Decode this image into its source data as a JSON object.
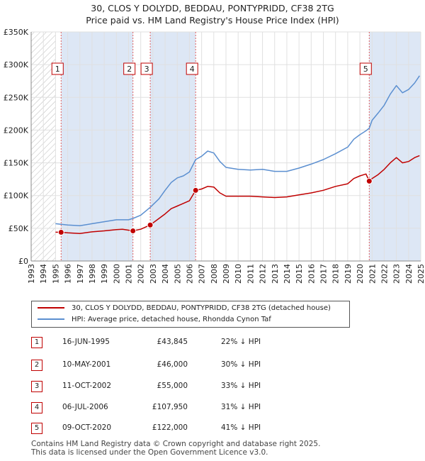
{
  "title_line1": "30, CLOS Y DOLYDD, BEDDAU, PONTYPRIDD, CF38 2TG",
  "title_line2": "Price paid vs. HM Land Registry's House Price Index (HPI)",
  "colors": {
    "property": "#c00000",
    "hpi": "#5b8fd0",
    "shade": "#dde7f5",
    "grid": "#e0e0e0"
  },
  "chart_data": {
    "type": "line",
    "xlim": [
      1993,
      2025
    ],
    "ylim": [
      0,
      350000
    ],
    "x_ticks": [
      "1993",
      "1994",
      "1995",
      "1996",
      "1997",
      "1998",
      "1999",
      "2000",
      "2001",
      "2002",
      "2003",
      "2004",
      "2005",
      "2006",
      "2007",
      "2008",
      "2009",
      "2010",
      "2011",
      "2012",
      "2013",
      "2014",
      "2015",
      "2016",
      "2017",
      "2018",
      "2019",
      "2020",
      "2021",
      "2022",
      "2023",
      "2024",
      "2025"
    ],
    "y_ticks": [
      {
        "value": 0,
        "label": "£0"
      },
      {
        "value": 50000,
        "label": "£50K"
      },
      {
        "value": 100000,
        "label": "£100K"
      },
      {
        "value": 150000,
        "label": "£150K"
      },
      {
        "value": 200000,
        "label": "£200K"
      },
      {
        "value": 250000,
        "label": "£250K"
      },
      {
        "value": 300000,
        "label": "£300K"
      },
      {
        "value": 350000,
        "label": "£350K"
      }
    ],
    "grid": true,
    "series": [
      {
        "name": "30, CLOS Y DOLYDD, BEDDAU, PONTYPRIDD, CF38 2TG (detached house)",
        "color": "#c00000",
        "points": [
          [
            1995.0,
            44000
          ],
          [
            1995.46,
            43845
          ],
          [
            1996.0,
            43000
          ],
          [
            1997.0,
            42000
          ],
          [
            1998.0,
            44500
          ],
          [
            1999.0,
            46000
          ],
          [
            2000.0,
            48000
          ],
          [
            2000.5,
            48500
          ],
          [
            2001.36,
            46000
          ],
          [
            2002.0,
            48500
          ],
          [
            2002.78,
            55000
          ],
          [
            2003.5,
            65000
          ],
          [
            2004.0,
            72000
          ],
          [
            2004.5,
            80000
          ],
          [
            2005.0,
            84000
          ],
          [
            2005.5,
            88000
          ],
          [
            2006.0,
            92000
          ],
          [
            2006.51,
            107950
          ],
          [
            2007.0,
            110000
          ],
          [
            2007.5,
            114000
          ],
          [
            2008.0,
            113000
          ],
          [
            2008.5,
            104000
          ],
          [
            2009.0,
            99000
          ],
          [
            2010.0,
            99000
          ],
          [
            2011.0,
            99000
          ],
          [
            2012.0,
            98000
          ],
          [
            2013.0,
            97000
          ],
          [
            2014.0,
            98000
          ],
          [
            2015.0,
            101000
          ],
          [
            2016.0,
            104000
          ],
          [
            2017.0,
            108000
          ],
          [
            2018.0,
            114000
          ],
          [
            2019.0,
            118000
          ],
          [
            2019.5,
            126000
          ],
          [
            2020.0,
            130000
          ],
          [
            2020.5,
            133000
          ],
          [
            2020.77,
            122000
          ],
          [
            2021.0,
            126000
          ],
          [
            2021.5,
            132000
          ],
          [
            2022.0,
            140000
          ],
          [
            2022.5,
            150000
          ],
          [
            2023.0,
            158000
          ],
          [
            2023.5,
            150000
          ],
          [
            2024.0,
            152000
          ],
          [
            2024.5,
            158000
          ],
          [
            2024.9,
            161000
          ]
        ]
      },
      {
        "name": "HPI: Average price, detached house, Rhondda Cynon Taf",
        "color": "#5b8fd0",
        "points": [
          [
            1995.0,
            57000
          ],
          [
            1995.46,
            56000
          ],
          [
            1996.0,
            55000
          ],
          [
            1997.0,
            54000
          ],
          [
            1998.0,
            57000
          ],
          [
            1999.0,
            60000
          ],
          [
            2000.0,
            63000
          ],
          [
            2001.0,
            63000
          ],
          [
            2001.36,
            65000
          ],
          [
            2002.0,
            70000
          ],
          [
            2002.78,
            82000
          ],
          [
            2003.5,
            95000
          ],
          [
            2004.0,
            108000
          ],
          [
            2004.5,
            120000
          ],
          [
            2005.0,
            127000
          ],
          [
            2005.5,
            130000
          ],
          [
            2006.0,
            136000
          ],
          [
            2006.51,
            155000
          ],
          [
            2007.0,
            160000
          ],
          [
            2007.5,
            168000
          ],
          [
            2008.0,
            165000
          ],
          [
            2008.5,
            152000
          ],
          [
            2009.0,
            143000
          ],
          [
            2010.0,
            140000
          ],
          [
            2011.0,
            139000
          ],
          [
            2012.0,
            140000
          ],
          [
            2013.0,
            137000
          ],
          [
            2014.0,
            137000
          ],
          [
            2015.0,
            142000
          ],
          [
            2016.0,
            148000
          ],
          [
            2017.0,
            155000
          ],
          [
            2018.0,
            164000
          ],
          [
            2019.0,
            174000
          ],
          [
            2019.5,
            186000
          ],
          [
            2020.0,
            193000
          ],
          [
            2020.5,
            199000
          ],
          [
            2020.77,
            203000
          ],
          [
            2021.0,
            215000
          ],
          [
            2021.5,
            226000
          ],
          [
            2022.0,
            238000
          ],
          [
            2022.5,
            255000
          ],
          [
            2023.0,
            268000
          ],
          [
            2023.5,
            257000
          ],
          [
            2024.0,
            262000
          ],
          [
            2024.5,
            272000
          ],
          [
            2024.9,
            283000
          ]
        ]
      }
    ],
    "sales": [
      {
        "label": "1",
        "x": 1995.46,
        "price": 43845
      },
      {
        "label": "2",
        "x": 2001.36,
        "price": 46000
      },
      {
        "label": "3",
        "x": 2002.78,
        "price": 55000
      },
      {
        "label": "4",
        "x": 2006.51,
        "price": 107950
      },
      {
        "label": "5",
        "x": 2020.77,
        "price": 122000
      }
    ],
    "shaded_ranges": [
      [
        1995.46,
        2001.36
      ],
      [
        2002.78,
        2006.51
      ],
      [
        2020.77,
        2025
      ]
    ],
    "hatched_before": 1995.0,
    "legend_placement": "below"
  },
  "legend": [
    {
      "label": "30, CLOS Y DOLYDD, BEDDAU, PONTYPRIDD, CF38 2TG (detached house)",
      "color": "#c00000"
    },
    {
      "label": "HPI: Average price, detached house, Rhondda Cynon Taf",
      "color": "#5b8fd0"
    }
  ],
  "sales_table": [
    {
      "num": "1",
      "date": "16-JUN-1995",
      "price": "£43,845",
      "hpi": "22% ↓ HPI"
    },
    {
      "num": "2",
      "date": "10-MAY-2001",
      "price": "£46,000",
      "hpi": "30% ↓ HPI"
    },
    {
      "num": "3",
      "date": "11-OCT-2002",
      "price": "£55,000",
      "hpi": "33% ↓ HPI"
    },
    {
      "num": "4",
      "date": "06-JUL-2006",
      "price": "£107,950",
      "hpi": "31% ↓ HPI"
    },
    {
      "num": "5",
      "date": "09-OCT-2020",
      "price": "£122,000",
      "hpi": "41% ↓ HPI"
    }
  ],
  "footer_line1": "Contains HM Land Registry data © Crown copyright and database right 2025.",
  "footer_line2": "This data is licensed under the Open Government Licence v3.0."
}
